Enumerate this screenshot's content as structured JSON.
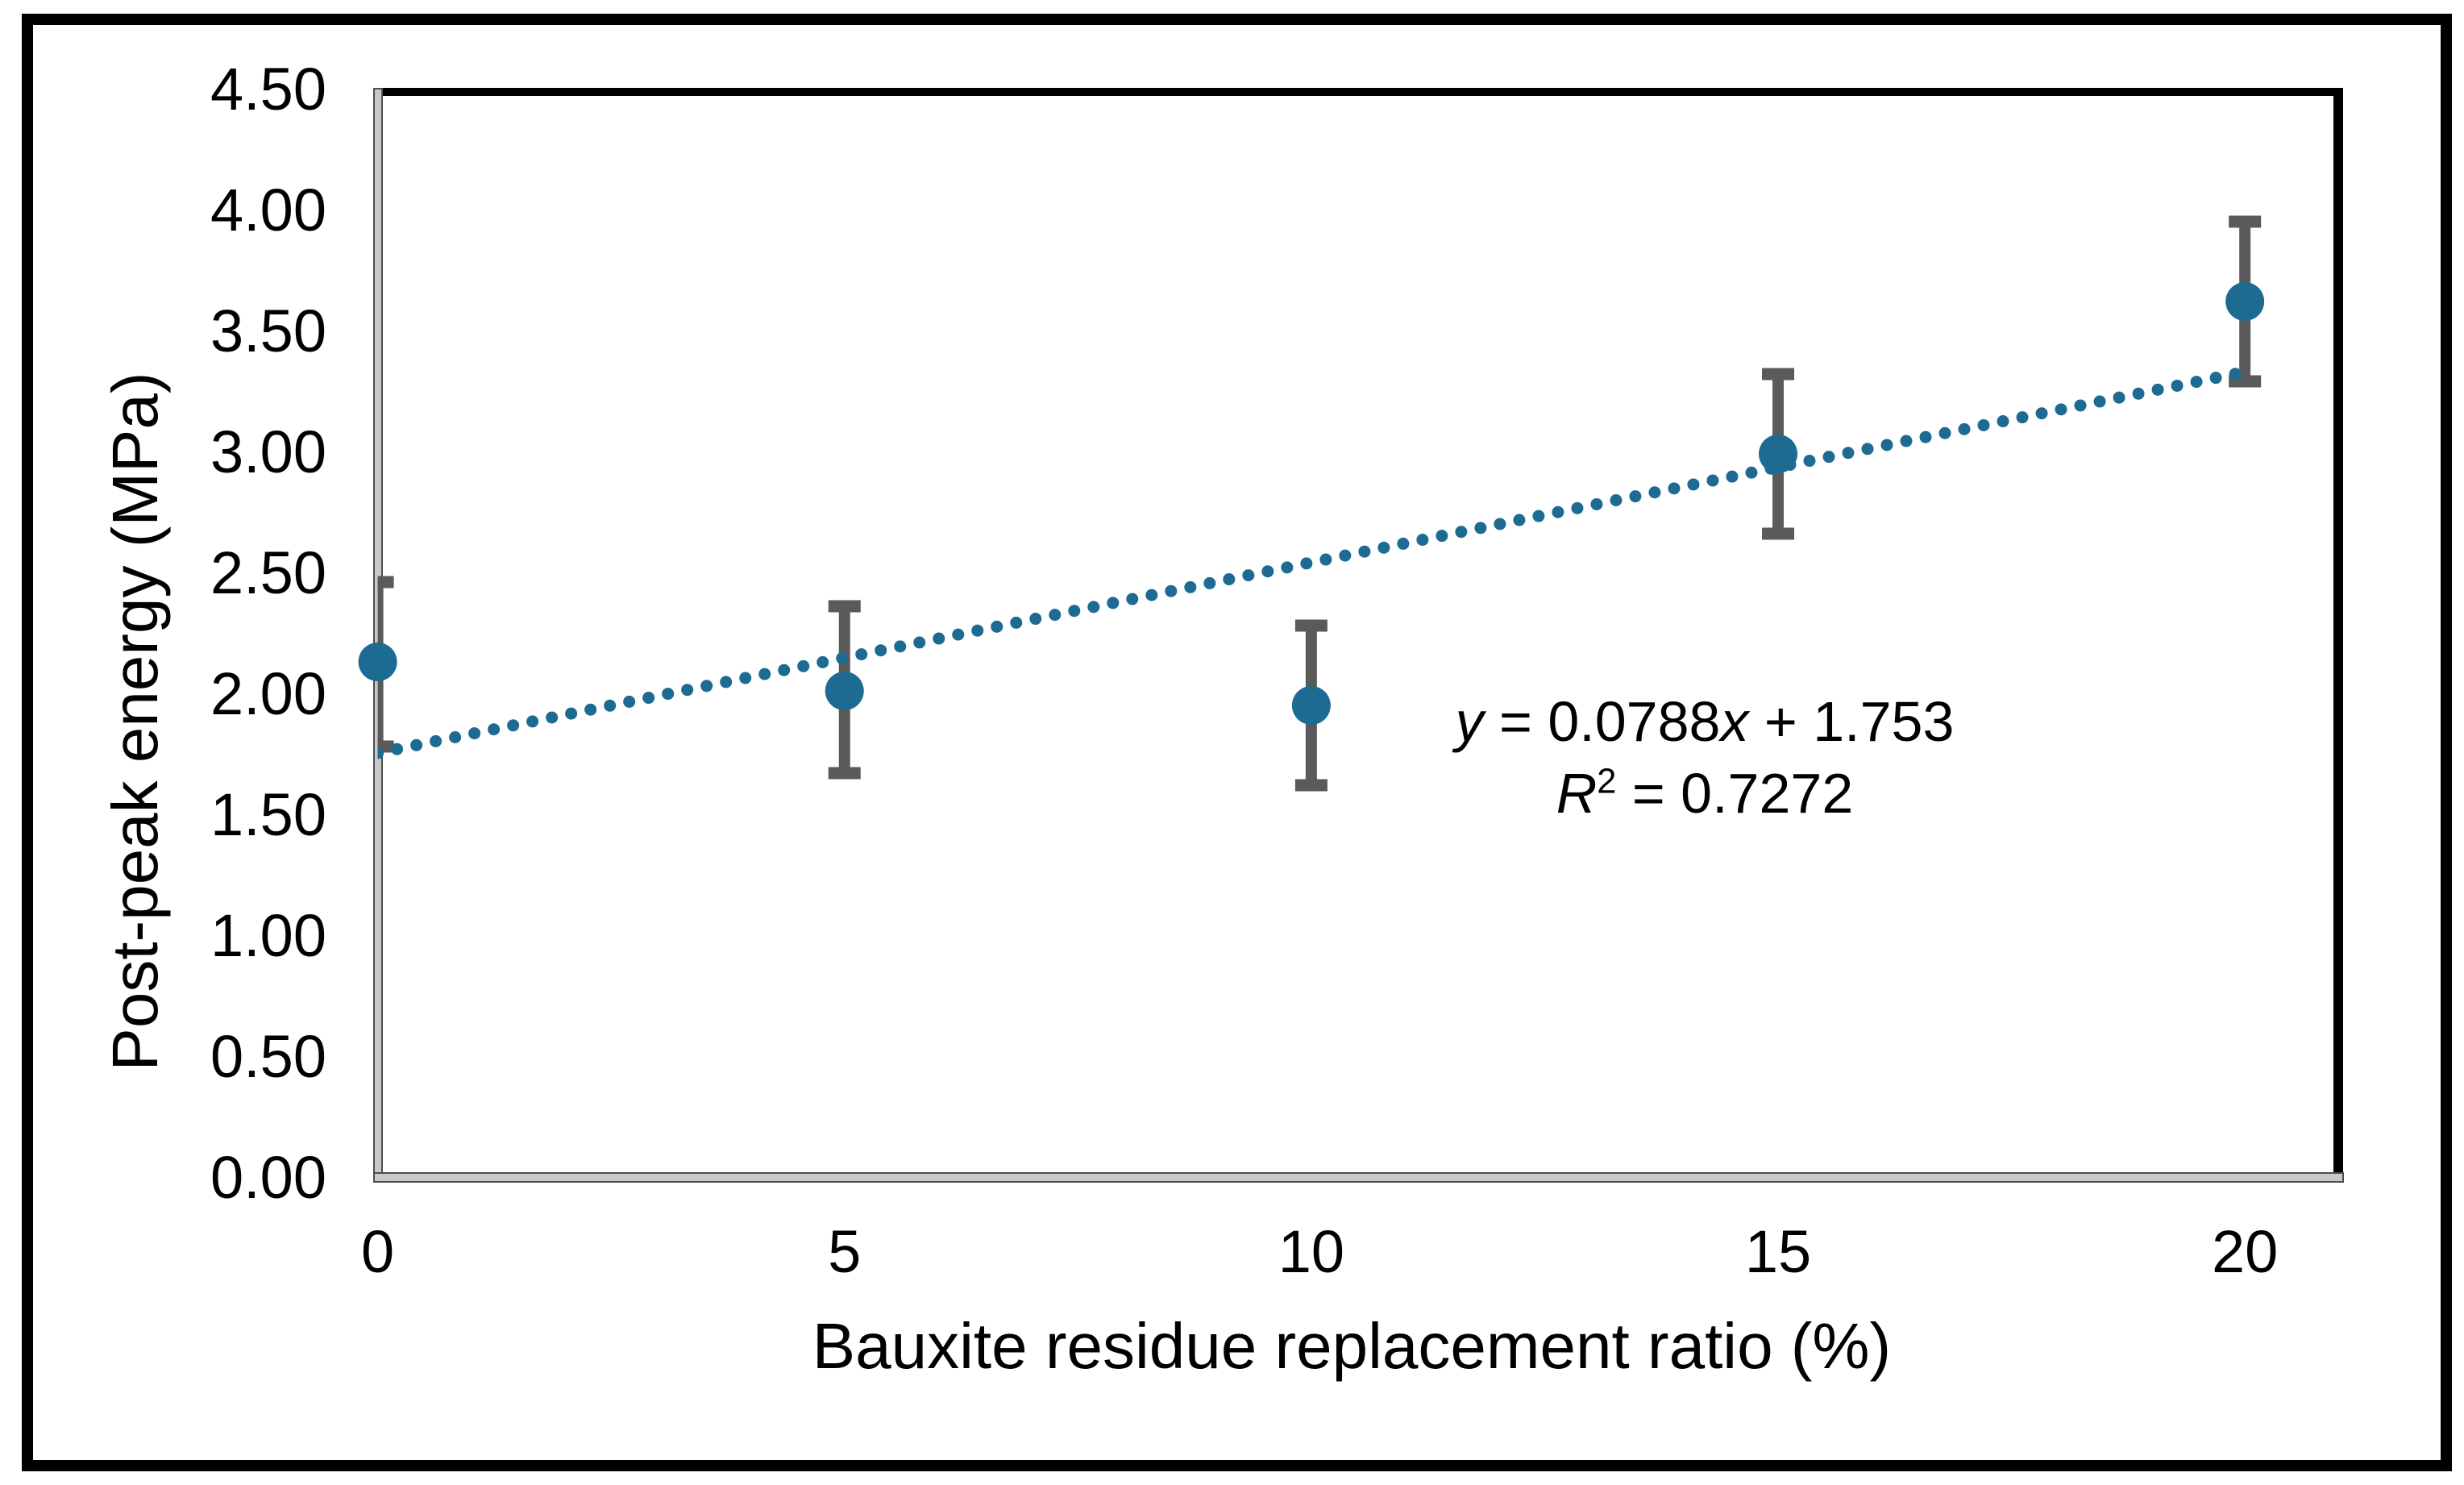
{
  "figure": {
    "background": "#FFFFFF",
    "border_color": "#000000"
  },
  "equation": {
    "y_var": "y",
    "slope_part": " = 0.0788",
    "x_var": "x",
    "intercept_part": " + 1.753",
    "r_var": "R",
    "r_sup": "2",
    "r_value_part": " = 0.7272"
  },
  "chart_data": {
    "type": "scatter",
    "title": "",
    "xlabel": "Bauxite residue replacement ratio (%)",
    "ylabel": "Post-peak energy (MPa)",
    "x": [
      0,
      5,
      10,
      15,
      20
    ],
    "y": [
      2.13,
      2.01,
      1.95,
      2.99,
      3.62
    ],
    "error_upper": [
      2.46,
      2.36,
      2.28,
      3.32,
      3.95
    ],
    "error_lower": [
      1.78,
      1.67,
      1.62,
      2.66,
      3.29
    ],
    "trendline": {
      "slope": 0.0788,
      "intercept": 1.753,
      "x_start": 0,
      "x_end": 20,
      "style": "dotted",
      "equation_text": "y = 0.0788x + 1.753",
      "r_squared_text": "R² = 0.7272"
    },
    "xlim": [
      0,
      21
    ],
    "ylim": [
      0,
      4.5
    ],
    "x_ticks": [
      {
        "value": 0,
        "label": "0"
      },
      {
        "value": 5,
        "label": "5"
      },
      {
        "value": 10,
        "label": "10"
      },
      {
        "value": 15,
        "label": "15"
      },
      {
        "value": 20,
        "label": "20"
      }
    ],
    "y_ticks": [
      {
        "value": 0.0,
        "label": "0.00"
      },
      {
        "value": 0.5,
        "label": "0.50"
      },
      {
        "value": 1.0,
        "label": "1.00"
      },
      {
        "value": 1.5,
        "label": "1.50"
      },
      {
        "value": 2.0,
        "label": "2.00"
      },
      {
        "value": 2.5,
        "label": "2.50"
      },
      {
        "value": 3.0,
        "label": "3.00"
      },
      {
        "value": 3.5,
        "label": "3.50"
      },
      {
        "value": 4.0,
        "label": "4.00"
      },
      {
        "value": 4.5,
        "label": "4.50"
      }
    ],
    "grid": false,
    "legend": false,
    "colors": {
      "marker": "#1D6A92",
      "error_bar": "#5A5A5A",
      "trendline": "#1D6A92",
      "axis_fill": "#C9C9C9",
      "axis_edge": "#4D4D4D",
      "plot_border": "#000000",
      "text": "#000000"
    }
  }
}
